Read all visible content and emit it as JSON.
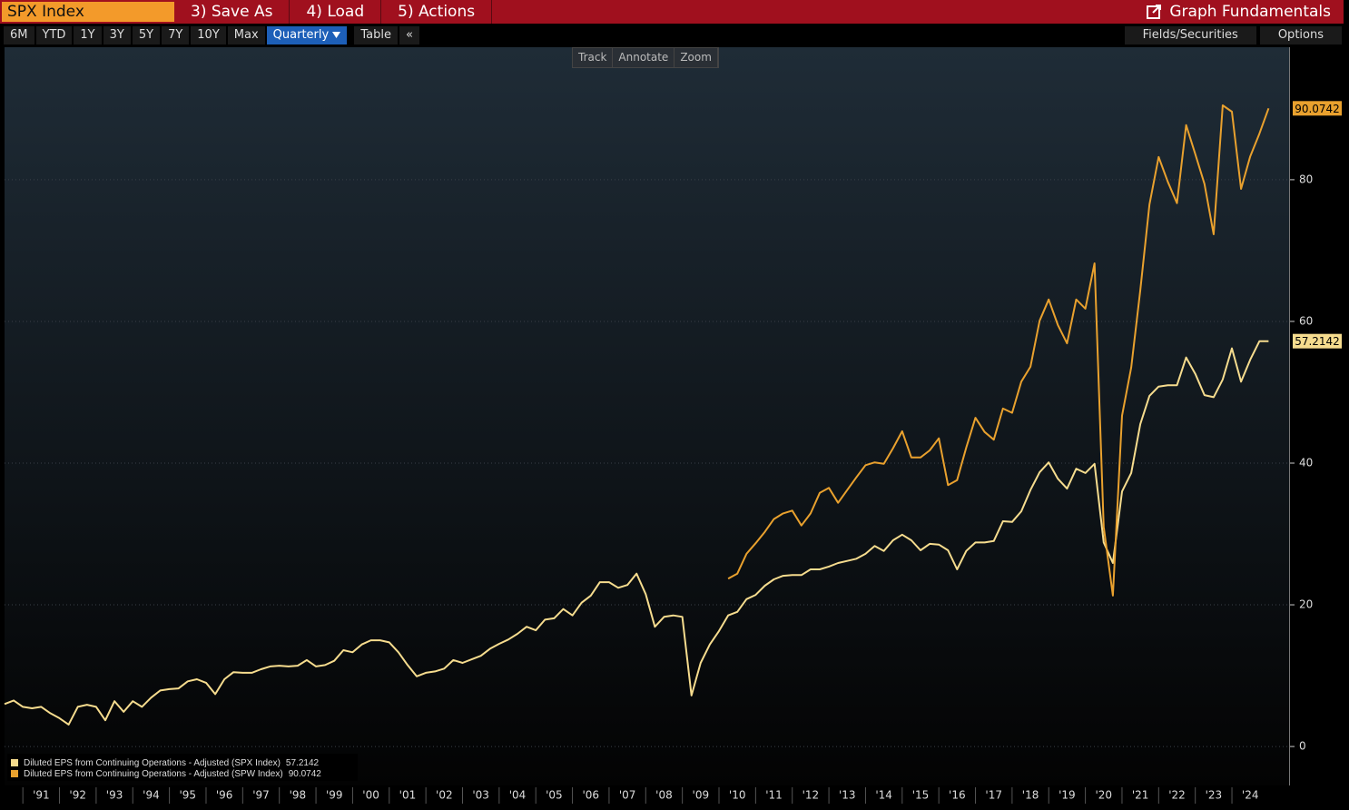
{
  "toolbar": {
    "ticker": "SPX Index",
    "menu": [
      "3) Save As",
      "4) Load",
      "5) Actions"
    ],
    "title": "Graph Fundamentals",
    "ranges": [
      "6M",
      "YTD",
      "1Y",
      "3Y",
      "5Y",
      "7Y",
      "10Y",
      "Max"
    ],
    "periodicity": "Quarterly",
    "table": "Table",
    "collapse": "«",
    "fields": "Fields/Securities",
    "options": "Options",
    "tools": [
      "Track",
      "Annotate",
      "Zoom"
    ]
  },
  "chart_data": {
    "type": "line",
    "grid": true,
    "x": [
      1990.5,
      1990.75,
      1991,
      1991.25,
      1991.5,
      1991.75,
      1992,
      1992.25,
      1992.5,
      1992.75,
      1993,
      1993.25,
      1993.5,
      1993.75,
      1994,
      1994.25,
      1994.5,
      1994.75,
      1995,
      1995.25,
      1995.5,
      1995.75,
      1996,
      1996.25,
      1996.5,
      1996.75,
      1997,
      1997.25,
      1997.5,
      1997.75,
      1998,
      1998.25,
      1998.5,
      1998.75,
      1999,
      1999.25,
      1999.5,
      1999.75,
      2000,
      2000.25,
      2000.5,
      2000.75,
      2001,
      2001.25,
      2001.5,
      2001.75,
      2002,
      2002.25,
      2002.5,
      2002.75,
      2003,
      2003.25,
      2003.5,
      2003.75,
      2004,
      2004.25,
      2004.5,
      2004.75,
      2005,
      2005.25,
      2005.5,
      2005.75,
      2006,
      2006.25,
      2006.5,
      2006.75,
      2007,
      2007.25,
      2007.5,
      2007.75,
      2008,
      2008.25,
      2008.5,
      2008.75,
      2009,
      2009.25,
      2009.5,
      2009.75,
      2010,
      2010.25,
      2010.5,
      2010.75,
      2011,
      2011.25,
      2011.5,
      2011.75,
      2012,
      2012.25,
      2012.5,
      2012.75,
      2013,
      2013.25,
      2013.5,
      2013.75,
      2014,
      2014.25,
      2014.5,
      2014.75,
      2015,
      2015.25,
      2015.5,
      2015.75,
      2016,
      2016.25,
      2016.5,
      2016.75,
      2017,
      2017.25,
      2017.5,
      2017.75,
      2018,
      2018.25,
      2018.5,
      2018.75,
      2019,
      2019.25,
      2019.5,
      2019.75,
      2020,
      2020.25,
      2020.5,
      2020.75,
      2021,
      2021.25,
      2021.5,
      2021.75,
      2022,
      2022.25,
      2022.5,
      2022.75,
      2023,
      2023.25,
      2023.5,
      2023.75,
      2024,
      2024.25,
      2024.5,
      2024.75,
      2025
    ],
    "series": [
      {
        "name": "Diluted EPS from Continuing Operations - Adjusted (SPX Index)",
        "color": "#f6dc8e",
        "values": [
          6.0,
          6.5,
          5.6,
          5.4,
          5.6,
          4.7,
          4.0,
          3.1,
          5.6,
          5.9,
          5.6,
          3.7,
          6.4,
          4.9,
          6.4,
          5.6,
          6.9,
          7.9,
          8.1,
          8.2,
          9.2,
          9.5,
          9.0,
          7.4,
          9.5,
          10.5,
          10.4,
          10.4,
          10.9,
          11.3,
          11.4,
          11.3,
          11.4,
          12.2,
          11.3,
          11.5,
          12.1,
          13.6,
          13.3,
          14.4,
          15.0,
          15.0,
          14.7,
          13.3,
          11.5,
          9.9,
          10.4,
          10.6,
          11.0,
          12.2,
          11.8,
          12.3,
          12.8,
          13.8,
          14.5,
          15.1,
          15.9,
          16.9,
          16.4,
          17.9,
          18.1,
          19.4,
          18.5,
          20.3,
          21.3,
          23.2,
          23.2,
          22.4,
          22.8,
          24.4,
          21.5,
          16.9,
          18.3,
          18.5,
          18.3,
          7.2,
          11.8,
          14.4,
          16.3,
          18.5,
          19.0,
          20.8,
          21.4,
          22.7,
          23.6,
          24.1,
          24.2,
          24.2,
          25.0,
          25.0,
          25.4,
          25.9,
          26.2,
          26.5,
          27.2,
          28.3,
          27.6,
          29.1,
          29.9,
          29.1,
          27.7,
          28.6,
          28.5,
          27.7,
          25.0,
          27.6,
          28.8,
          28.8,
          29.0,
          31.8,
          31.7,
          33.2,
          36.2,
          38.7,
          40.1,
          37.8,
          36.4,
          39.2,
          38.6,
          39.9,
          28.8,
          25.9,
          36.0,
          38.6,
          45.5,
          49.5,
          50.8,
          51.0,
          51.0,
          54.9,
          52.6,
          49.6,
          49.3,
          51.8,
          56.2,
          51.5,
          54.6,
          57.2,
          57.2142
        ]
      },
      {
        "name": "Diluted EPS from Continuing Operations - Adjusted (SPW Index)",
        "color": "#e9a12e",
        "values": [
          null,
          null,
          null,
          null,
          null,
          null,
          null,
          null,
          null,
          null,
          null,
          null,
          null,
          null,
          null,
          null,
          null,
          null,
          null,
          null,
          null,
          null,
          null,
          null,
          null,
          null,
          null,
          null,
          null,
          null,
          null,
          null,
          null,
          null,
          null,
          null,
          null,
          null,
          null,
          null,
          null,
          null,
          null,
          null,
          null,
          null,
          null,
          null,
          null,
          null,
          null,
          null,
          null,
          null,
          null,
          null,
          null,
          null,
          null,
          null,
          null,
          null,
          null,
          null,
          null,
          null,
          null,
          null,
          null,
          null,
          null,
          null,
          null,
          null,
          null,
          null,
          null,
          null,
          null,
          23.7,
          24.4,
          27.2,
          28.7,
          30.3,
          32.1,
          32.9,
          33.3,
          31.2,
          32.9,
          35.8,
          36.5,
          34.4,
          36.2,
          38.0,
          39.7,
          40.1,
          39.9,
          42.1,
          44.5,
          40.8,
          40.8,
          41.8,
          43.5,
          36.9,
          37.6,
          42.2,
          46.4,
          44.4,
          43.3,
          47.7,
          47.1,
          51.5,
          53.6,
          60.1,
          63.1,
          59.5,
          56.9,
          63.1,
          61.8,
          68.2,
          31.0,
          21.3,
          46.7,
          53.5,
          64.4,
          76.5,
          83.2,
          79.7,
          76.7,
          87.7,
          83.6,
          79.4,
          72.3,
          90.5,
          89.6,
          78.7,
          83.3,
          86.5,
          90.0742
        ]
      }
    ],
    "xlim": [
      1990.5,
      2025.56
    ],
    "xticks": [
      {
        "value": 1991.5,
        "label": "'91"
      },
      {
        "value": 1992.5,
        "label": "'92"
      },
      {
        "value": 1993.5,
        "label": "'93"
      },
      {
        "value": 1994.5,
        "label": "'94"
      },
      {
        "value": 1995.5,
        "label": "'95"
      },
      {
        "value": 1996.5,
        "label": "'96"
      },
      {
        "value": 1997.5,
        "label": "'97"
      },
      {
        "value": 1998.5,
        "label": "'98"
      },
      {
        "value": 1999.5,
        "label": "'99"
      },
      {
        "value": 2000.5,
        "label": "'00"
      },
      {
        "value": 2001.5,
        "label": "'01"
      },
      {
        "value": 2002.5,
        "label": "'02"
      },
      {
        "value": 2003.5,
        "label": "'03"
      },
      {
        "value": 2004.5,
        "label": "'04"
      },
      {
        "value": 2005.5,
        "label": "'05"
      },
      {
        "value": 2006.5,
        "label": "'06"
      },
      {
        "value": 2007.5,
        "label": "'07"
      },
      {
        "value": 2008.5,
        "label": "'08"
      },
      {
        "value": 2009.5,
        "label": "'09"
      },
      {
        "value": 2010.5,
        "label": "'10"
      },
      {
        "value": 2011.5,
        "label": "'11"
      },
      {
        "value": 2012.5,
        "label": "'12"
      },
      {
        "value": 2013.5,
        "label": "'13"
      },
      {
        "value": 2014.5,
        "label": "'14"
      },
      {
        "value": 2015.5,
        "label": "'15"
      },
      {
        "value": 2016.5,
        "label": "'16"
      },
      {
        "value": 2017.5,
        "label": "'17"
      },
      {
        "value": 2018.5,
        "label": "'18"
      },
      {
        "value": 2019.5,
        "label": "'19"
      },
      {
        "value": 2020.5,
        "label": "'20"
      },
      {
        "value": 2021.5,
        "label": "'21"
      },
      {
        "value": 2022.5,
        "label": "'22"
      },
      {
        "value": 2023.5,
        "label": "'23"
      },
      {
        "value": 2024.5,
        "label": "'24"
      }
    ],
    "ylim": [
      -5.5,
      98.7
    ],
    "yticks": [
      0,
      20,
      40,
      60,
      80
    ]
  }
}
